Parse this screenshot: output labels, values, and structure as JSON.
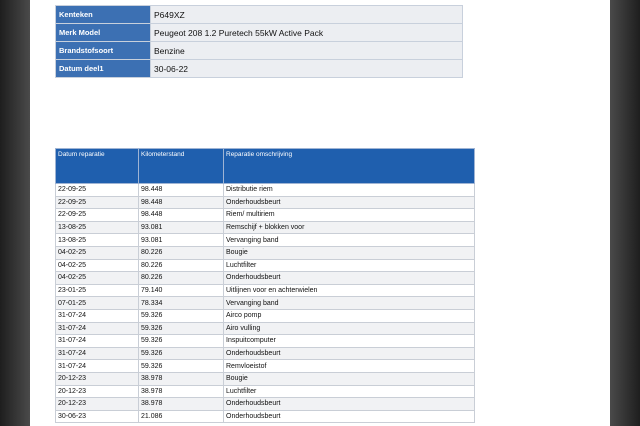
{
  "info_table": {
    "rows": [
      [
        "Kenteken",
        "P649XZ"
      ],
      [
        "Merk Model",
        "Peugeot 208 1.2 Puretech 55kW  Active Pack"
      ],
      [
        "Brandstofsoort",
        "Benzine"
      ],
      [
        "Datum deel1",
        "30-06-22"
      ]
    ]
  },
  "repair_table": {
    "headers": [
      "Datum reparatie",
      "Kilometerstand",
      "Reparatie omschrijving"
    ],
    "rows": [
      [
        "22-09-25",
        "98.448",
        "Distributie riem"
      ],
      [
        "22-09-25",
        "98.448",
        "Onderhoudsbeurt"
      ],
      [
        "22-09-25",
        "98.448",
        "Riem/ multiriem"
      ],
      [
        "13-08-25",
        "93.081",
        "Remschijf + blokken voor"
      ],
      [
        "13-08-25",
        "93.081",
        "Vervanging band"
      ],
      [
        "04-02-25",
        "80.226",
        "Bougie"
      ],
      [
        "04-02-25",
        "80.226",
        "Luchtfilter"
      ],
      [
        "04-02-25",
        "80.226",
        "Onderhoudsbeurt"
      ],
      [
        "23-01-25",
        "79.140",
        "Uitlijnen voor en achterwielen"
      ],
      [
        "07-01-25",
        "78.334",
        "Vervanging band"
      ],
      [
        "31-07-24",
        "59.326",
        "Airco pomp"
      ],
      [
        "31-07-24",
        "59.326",
        "Airo vulling"
      ],
      [
        "31-07-24",
        "59.326",
        "Inspuitcomputer"
      ],
      [
        "31-07-24",
        "59.326",
        "Onderhoudsbeurt"
      ],
      [
        "31-07-24",
        "59.326",
        "Remvloeistof"
      ],
      [
        "20-12-23",
        "38.978",
        "Bougie"
      ],
      [
        "20-12-23",
        "38.978",
        "Luchtfilter"
      ],
      [
        "20-12-23",
        "38.978",
        "Onderhoudsbeurt"
      ],
      [
        "30-06-23",
        "21.086",
        "Onderhoudsbeurt"
      ]
    ]
  }
}
